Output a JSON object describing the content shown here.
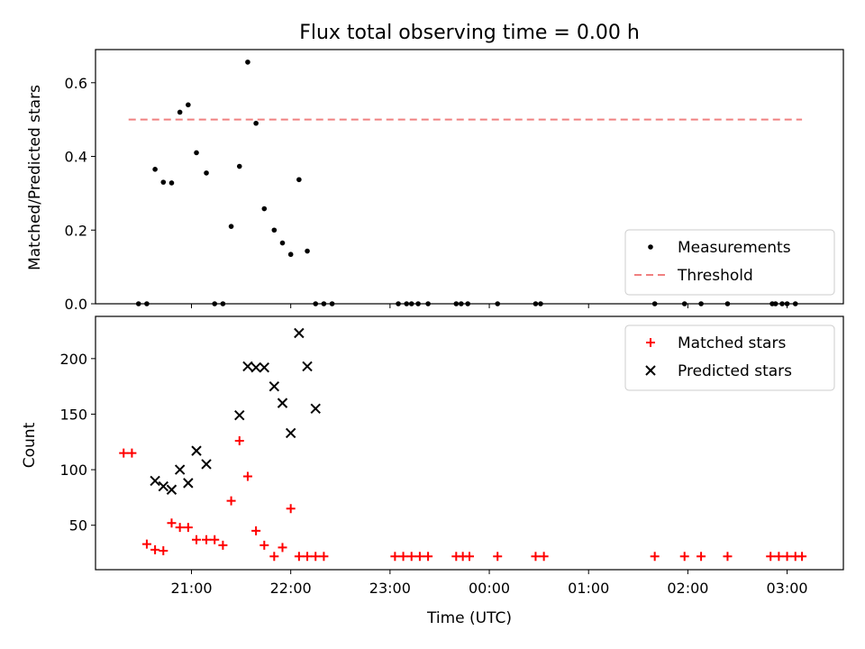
{
  "chart_data": [
    {
      "type": "scatter",
      "title": "Flux total observing time = 0.00 h",
      "xlabel": "",
      "ylabel": "Matched/Predicted stars",
      "x_ticks": [
        "21:00",
        "22:00",
        "23:00",
        "00:00",
        "01:00",
        "02:00",
        "03:00"
      ],
      "x_range": [
        "20:02",
        "03:34"
      ],
      "ylim": [
        0.0,
        0.69
      ],
      "y_ticks": [
        0.0,
        0.2,
        0.4,
        0.6
      ],
      "y_tick_labels": [
        "0.0",
        "0.2",
        "0.4",
        "0.6"
      ],
      "grid": false,
      "legend_position": "lower right",
      "series": [
        {
          "name": "Measurements",
          "style": "dot",
          "color": "#000000",
          "x": [
            "20:28",
            "20:33",
            "20:38",
            "20:43",
            "20:48",
            "20:53",
            "20:58",
            "21:03",
            "21:09",
            "21:14",
            "21:19",
            "21:24",
            "21:29",
            "21:34",
            "21:39",
            "21:44",
            "21:50",
            "21:55",
            "22:00",
            "22:05",
            "22:10",
            "22:15",
            "22:20",
            "22:25",
            "23:05",
            "23:10",
            "23:13",
            "23:17",
            "23:23",
            "23:40",
            "23:43",
            "23:47",
            "00:05",
            "00:28",
            "00:31",
            "01:40",
            "01:58",
            "02:08",
            "02:24",
            "02:51",
            "02:53",
            "02:57",
            "03:00",
            "03:05"
          ],
          "y": [
            0.0,
            0.0,
            0.365,
            0.33,
            0.328,
            0.52,
            0.54,
            0.41,
            0.355,
            0.0,
            0.0,
            0.21,
            0.373,
            0.656,
            0.49,
            0.258,
            0.2,
            0.165,
            0.134,
            0.337,
            0.143,
            0.0,
            0.0,
            0.0,
            0.0,
            0.0,
            0.0,
            0.0,
            0.0,
            0.0,
            0.0,
            0.0,
            0.0,
            0.0,
            0.0,
            0.0,
            0.0,
            0.0,
            0.0,
            0.0,
            0.0,
            0.0,
            0.0,
            0.0
          ]
        },
        {
          "name": "Threshold",
          "style": "dashed-line",
          "color": "#f08080",
          "x": [
            "20:22",
            "03:09"
          ],
          "y": [
            0.5,
            0.5
          ]
        }
      ]
    },
    {
      "type": "scatter",
      "title": "",
      "xlabel": "Time (UTC)",
      "ylabel": "Count",
      "x_ticks": [
        "21:00",
        "22:00",
        "23:00",
        "00:00",
        "01:00",
        "02:00",
        "03:00"
      ],
      "x_range": [
        "20:02",
        "03:34"
      ],
      "ylim": [
        10,
        238
      ],
      "y_ticks": [
        50,
        100,
        150,
        200
      ],
      "y_tick_labels": [
        "50",
        "100",
        "150",
        "200"
      ],
      "grid": false,
      "legend_position": "upper right",
      "series": [
        {
          "name": "Matched stars",
          "marker": "plus",
          "color": "#ff0000",
          "x": [
            "20:19",
            "20:24",
            "20:33",
            "20:38",
            "20:43",
            "20:48",
            "20:53",
            "20:58",
            "21:03",
            "21:09",
            "21:14",
            "21:19",
            "21:24",
            "21:29",
            "21:34",
            "21:39",
            "21:44",
            "21:50",
            "21:55",
            "22:00",
            "22:05",
            "22:10",
            "22:15",
            "22:20",
            "23:03",
            "23:08",
            "23:13",
            "23:18",
            "23:23",
            "23:40",
            "23:44",
            "23:48",
            "00:05",
            "00:28",
            "00:33",
            "01:40",
            "01:58",
            "02:08",
            "02:24",
            "02:50",
            "02:55",
            "03:00",
            "03:05",
            "03:09"
          ],
          "y": [
            115,
            115,
            33,
            28,
            27,
            52,
            48,
            48,
            37,
            37,
            37,
            32,
            72,
            126,
            94,
            45,
            32,
            22,
            30,
            65,
            22,
            22,
            22,
            22,
            22,
            22,
            22,
            22,
            22,
            22,
            22,
            22,
            22,
            22,
            22,
            22,
            22,
            22,
            22,
            22,
            22,
            22,
            22,
            22
          ]
        },
        {
          "name": "Predicted stars",
          "marker": "cross",
          "color": "#000000",
          "x": [
            "20:38",
            "20:43",
            "20:48",
            "20:53",
            "20:58",
            "21:03",
            "21:09",
            "21:29",
            "21:34",
            "21:39",
            "21:44",
            "21:50",
            "21:55",
            "22:00",
            "22:05",
            "22:10",
            "22:15"
          ],
          "y": [
            90,
            85,
            82,
            100,
            88,
            117,
            105,
            149,
            193,
            192,
            192,
            175,
            160,
            133,
            223,
            193,
            155
          ]
        }
      ]
    }
  ]
}
